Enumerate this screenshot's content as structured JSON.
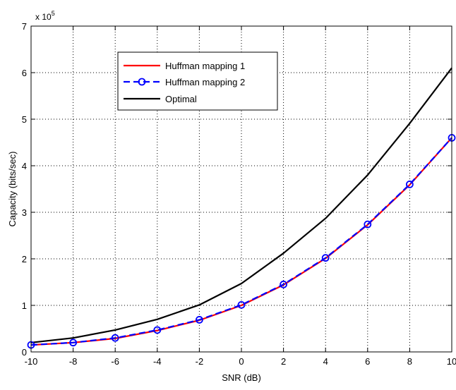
{
  "chart_data": {
    "type": "line",
    "xlabel": "SNR (dB)",
    "ylabel": "Capacity (bits/sec)",
    "y_multiplier_label": "x 10",
    "y_multiplier_exponent": "5",
    "xlim": [
      -10,
      10
    ],
    "ylim": [
      0,
      7
    ],
    "xticks": [
      -10,
      -8,
      -6,
      -4,
      -2,
      0,
      2,
      4,
      6,
      8,
      10
    ],
    "yticks": [
      0,
      1,
      2,
      3,
      4,
      5,
      6,
      7
    ],
    "grid": true,
    "legend_position": "top-center",
    "x": [
      -10,
      -8,
      -6,
      -4,
      -2,
      0,
      2,
      4,
      6,
      8,
      10
    ],
    "series": [
      {
        "name": "Huffman mapping 1",
        "color": "#ff0000",
        "style": "solid",
        "marker": "none",
        "values": [
          0.15,
          0.2,
          0.29,
          0.46,
          0.68,
          1.0,
          1.44,
          2.01,
          2.73,
          3.59,
          4.6
        ]
      },
      {
        "name": "Huffman mapping 2",
        "color": "#0000ff",
        "style": "dashed",
        "marker": "circle",
        "values": [
          0.15,
          0.2,
          0.3,
          0.47,
          0.69,
          1.01,
          1.45,
          2.02,
          2.74,
          3.6,
          4.6
        ]
      },
      {
        "name": "Optimal",
        "color": "#000000",
        "style": "solid",
        "marker": "none",
        "values": [
          0.2,
          0.3,
          0.47,
          0.7,
          1.01,
          1.47,
          2.12,
          2.87,
          3.8,
          4.91,
          6.1
        ]
      }
    ]
  }
}
